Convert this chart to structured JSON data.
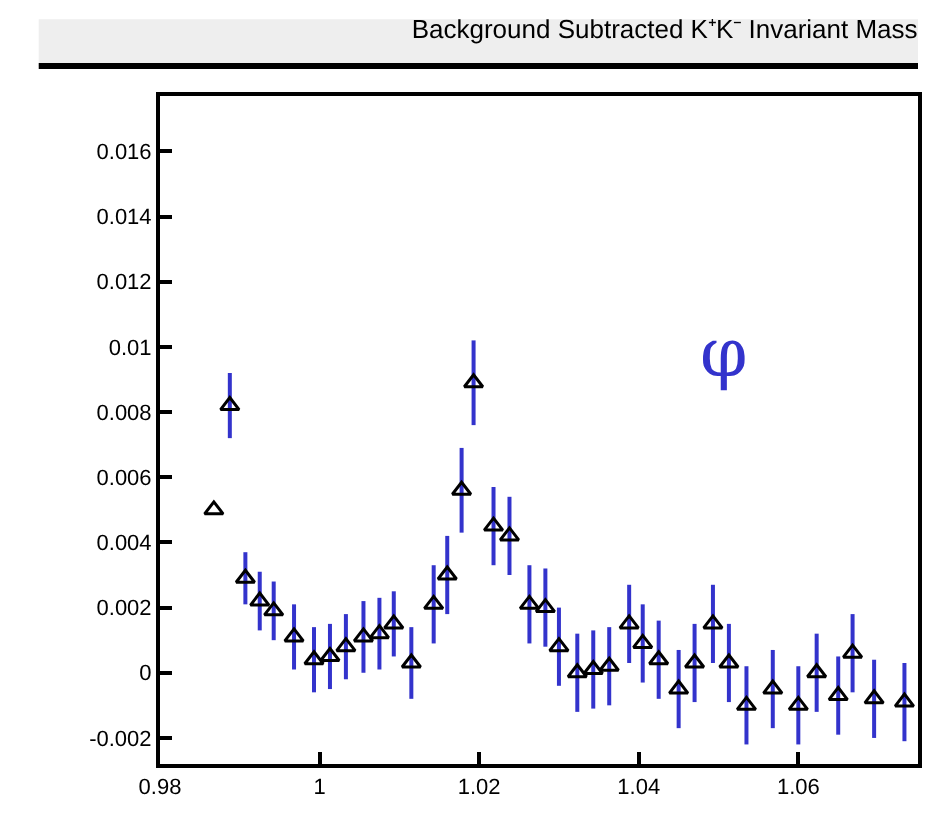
{
  "chart_data": {
    "type": "scatter",
    "title": "Background Subtracted K⁺K⁻ Invariant Mass",
    "annotations": [
      "φ"
    ],
    "x": [
      0.98675,
      0.98875,
      0.9907,
      0.9925,
      0.99425,
      0.9968,
      0.9993,
      1.0013,
      1.0033,
      1.0055,
      1.0075,
      1.0093,
      1.0115,
      1.0143,
      1.016,
      1.0178,
      1.0193,
      1.0218,
      1.0238,
      1.0263,
      1.0283,
      1.03,
      1.0323,
      1.0343,
      1.0363,
      1.0388,
      1.0405,
      1.0425,
      1.045,
      1.047,
      1.0493,
      1.0513,
      1.0535,
      1.0568,
      1.06,
      1.0623,
      1.065,
      1.0668,
      1.0695,
      1.0733
    ],
    "series": [
      {
        "color": "#000000",
        "values": [
          0.005,
          0.0082,
          0.0029,
          0.0022,
          0.0019,
          0.0011,
          0.0004,
          0.0005,
          0.0008,
          0.0011,
          0.0012,
          0.0015,
          0.0003,
          0.0021,
          0.003,
          0.0056,
          0.0089,
          0.0045,
          0.0042,
          0.0021,
          0.002,
          0.0008,
          0.0,
          0.0001,
          0.0002,
          0.0015,
          0.0009,
          0.0004,
          -0.0005,
          0.0003,
          0.0015,
          0.0003,
          -0.001,
          -0.0005,
          -0.001,
          0.0,
          -0.0007,
          0.0006,
          -0.0008,
          -0.0009
        ],
        "errors": [
          null,
          0.001,
          0.0008,
          0.0009,
          0.0009,
          0.001,
          0.001,
          0.001,
          0.001,
          0.0011,
          0.0011,
          0.001,
          0.0011,
          0.0012,
          0.0012,
          0.0013,
          0.0013,
          0.0012,
          0.0012,
          0.0012,
          0.0012,
          0.0012,
          0.0012,
          0.0012,
          0.0012,
          0.0012,
          0.0012,
          0.0012,
          0.0012,
          0.0012,
          0.0012,
          0.0012,
          0.0012,
          0.0012,
          0.0012,
          0.0012,
          0.0012,
          0.0012,
          0.0012,
          0.0012
        ]
      }
    ],
    "marker": "triangle",
    "xlim": [
      0.98,
      1.075
    ],
    "xticks": [
      {
        "value": 0.98,
        "label": "0.98"
      },
      1,
      1.02,
      1.04,
      1.06
    ],
    "ylim": [
      -0.0028,
      0.0177
    ],
    "yticks": [
      -0.002,
      0,
      0.002,
      0.004,
      0.006,
      0.008,
      0.01,
      0.012,
      0.014,
      0.016
    ]
  }
}
